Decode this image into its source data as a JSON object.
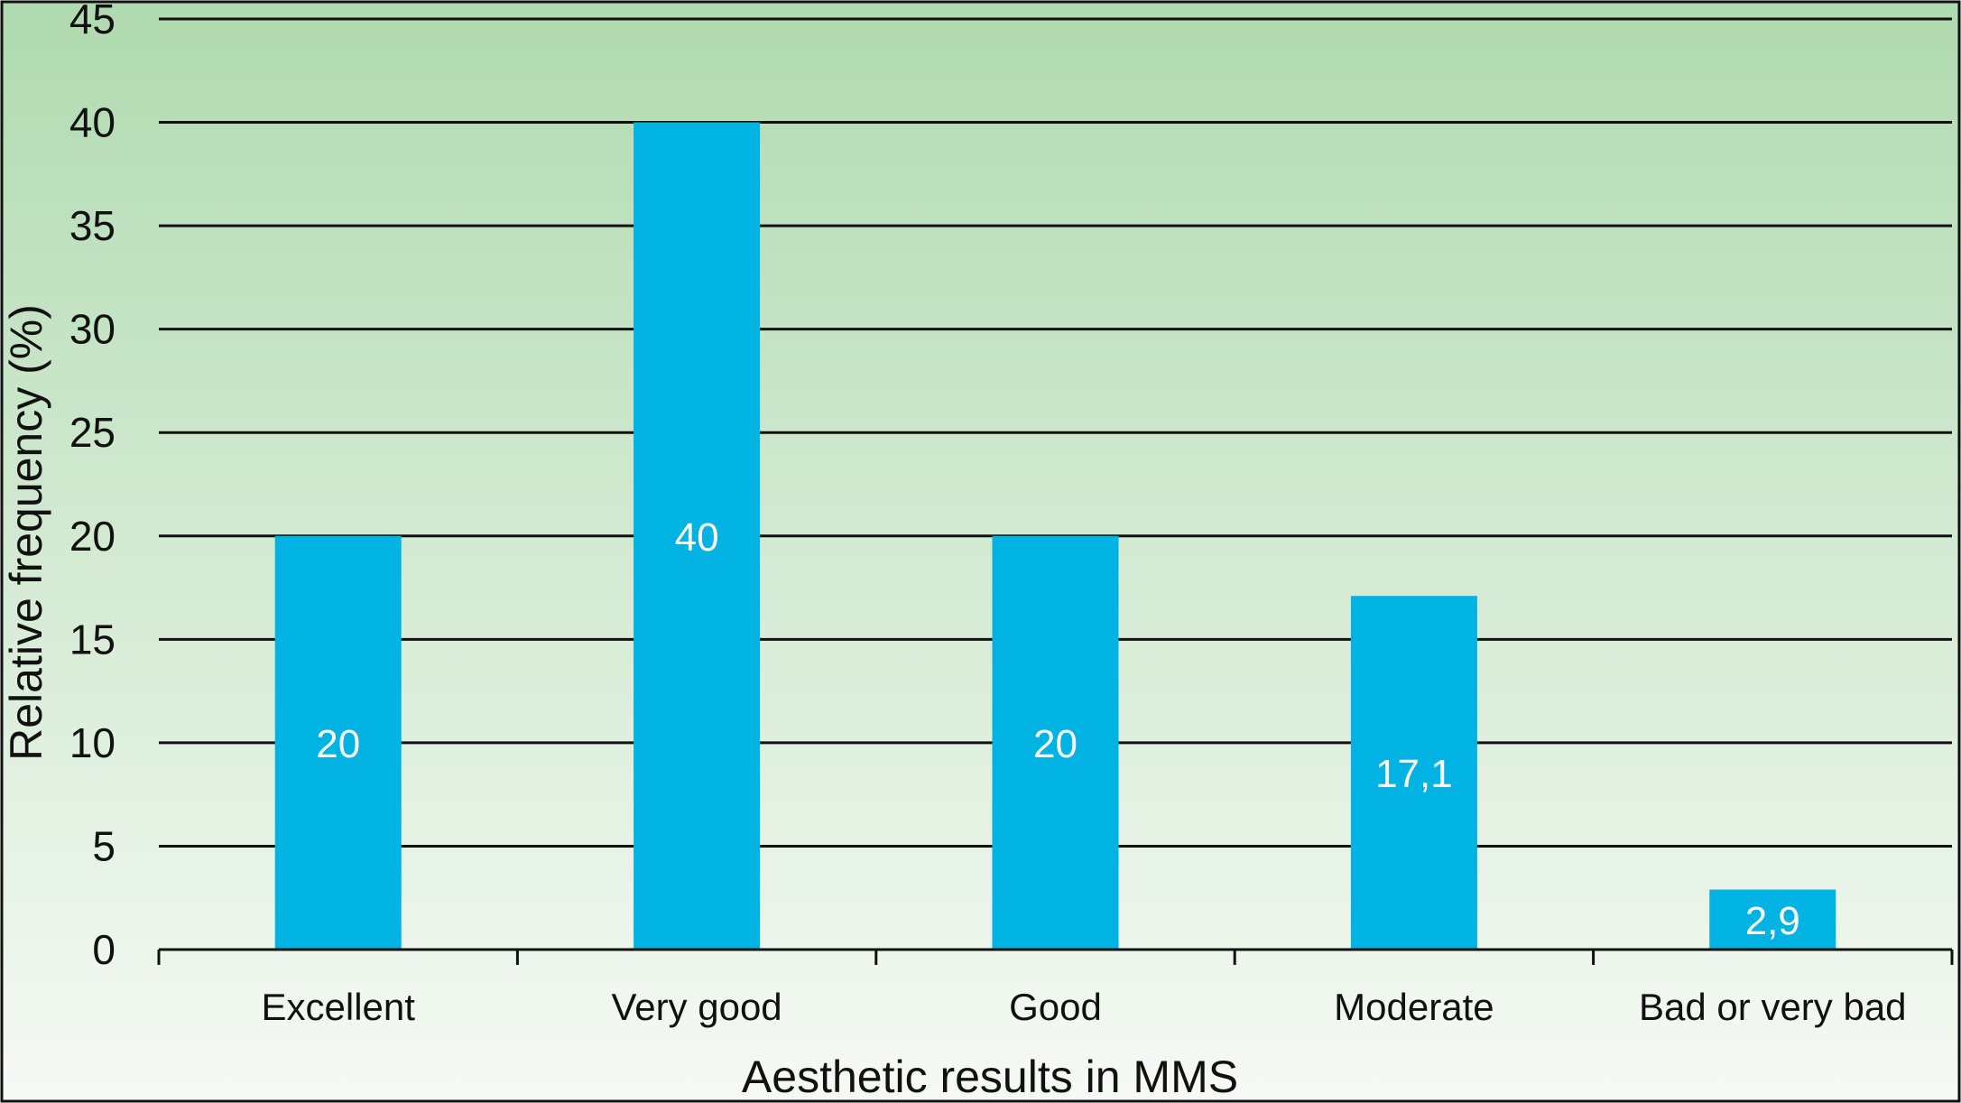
{
  "chart_data": {
    "type": "bar",
    "categories": [
      "Excellent",
      "Very good",
      "Good",
      "Moderate",
      "Bad or very bad"
    ],
    "values": [
      20,
      40,
      20,
      17.1,
      2.9
    ],
    "data_labels": [
      "20",
      "40",
      "20",
      "17,1",
      "2,9"
    ],
    "xlabel": "Aesthetic results in MMS",
    "ylabel": "Relative frequency (%)",
    "ylim": [
      0,
      45
    ],
    "yticks": [
      0,
      5,
      10,
      15,
      20,
      25,
      30,
      35,
      40,
      45
    ],
    "grid": true,
    "legend": "none",
    "colors": {
      "bar": "#00b3e3",
      "background_top": "#b0dab0",
      "background_bottom": "#f6faf5",
      "gridline": "#111111"
    }
  }
}
